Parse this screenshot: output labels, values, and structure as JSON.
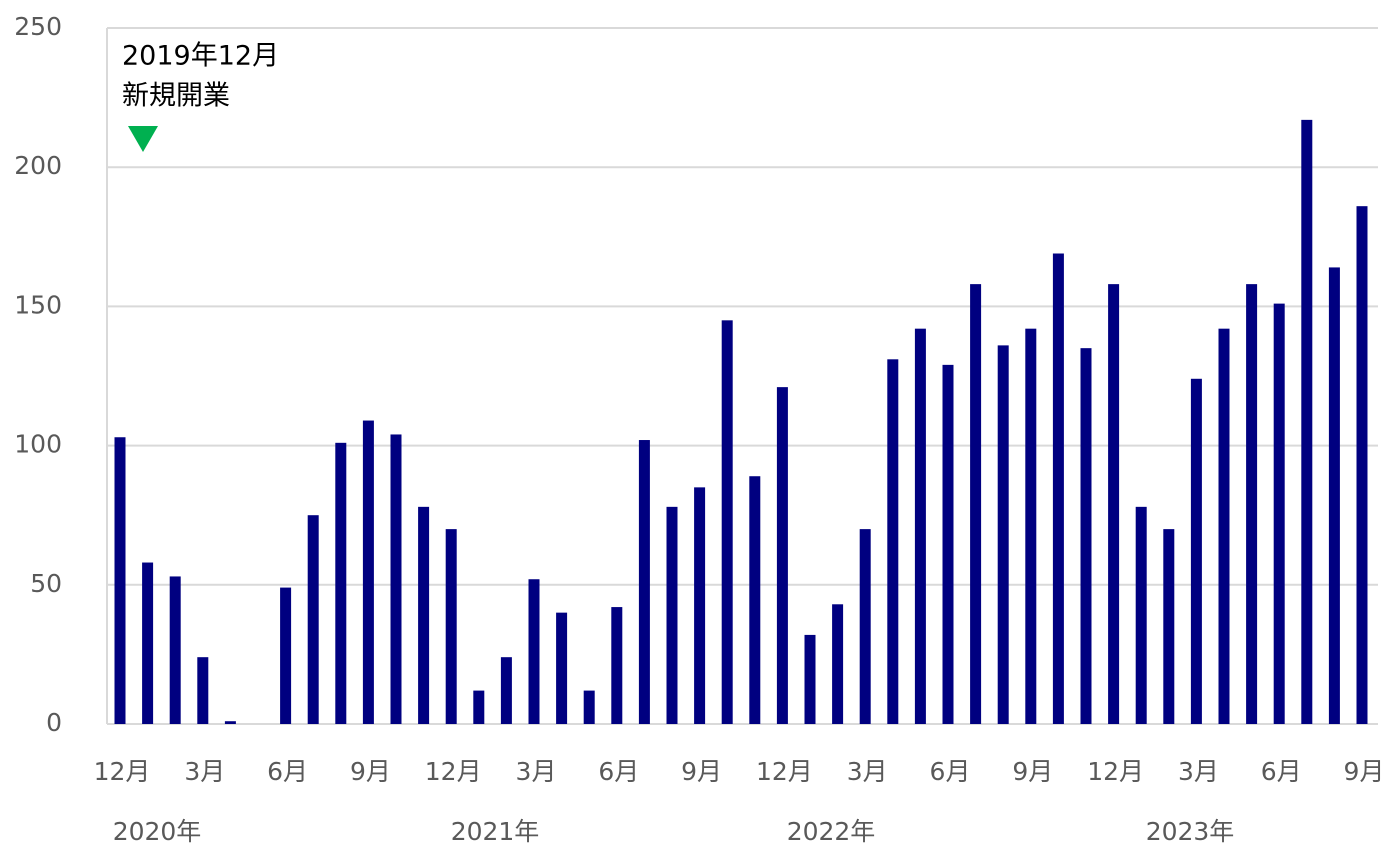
{
  "chart_data": {
    "type": "bar",
    "annotation": [
      "2019年12月",
      "新規開業"
    ],
    "categories": [
      "12月",
      null,
      null,
      "3月",
      null,
      null,
      "6月",
      null,
      null,
      "9月",
      null,
      null,
      "12月",
      null,
      null,
      "3月",
      null,
      null,
      "6月",
      null,
      null,
      "9月",
      null,
      null,
      "12月",
      null,
      null,
      "3月",
      null,
      null,
      "6月",
      null,
      null,
      "9月",
      null,
      null,
      "12月",
      null,
      null,
      "3月",
      null,
      null,
      "6月",
      null,
      null,
      "9月"
    ],
    "year_labels": [
      "2020年",
      "2021年",
      "2022年",
      "2023年"
    ],
    "values": [
      103,
      58,
      53,
      24,
      1,
      0,
      49,
      75,
      101,
      109,
      104,
      78,
      70,
      12,
      24,
      52,
      40,
      12,
      42,
      102,
      78,
      85,
      145,
      89,
      121,
      32,
      43,
      70,
      131,
      142,
      129,
      158,
      136,
      142,
      169,
      135,
      158,
      78,
      70,
      124,
      142,
      158,
      151,
      217,
      164,
      186
    ],
    "color": "#000080",
    "ylim": [
      0,
      250
    ],
    "yticks": [
      0,
      50,
      100,
      150,
      200,
      250
    ],
    "grid": true
  }
}
